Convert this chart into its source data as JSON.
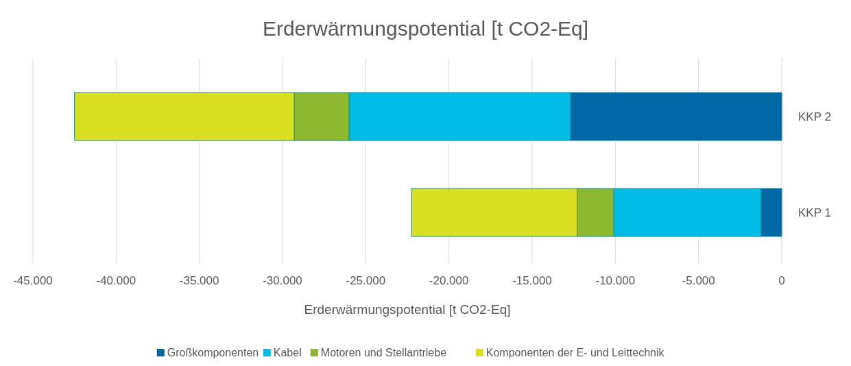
{
  "chart_data": {
    "type": "bar",
    "orientation": "horizontal",
    "stacked": true,
    "title": "Erderwärmungspotential [t CO2-Eq]",
    "xlabel": "Erderwärmungspotential [t CO2-Eq]",
    "categories": [
      "KKP 2",
      "KKP 1"
    ],
    "series": [
      {
        "name": "Großkomponenten",
        "color": "#0068a5",
        "values": [
          -12700,
          -1250
        ]
      },
      {
        "name": "Kabel",
        "color": "#00bce4",
        "values": [
          -13300,
          -8850
        ]
      },
      {
        "name": "Motoren und Stellantriebe",
        "color": "#8db92e",
        "values": [
          -3300,
          -2200
        ]
      },
      {
        "name": "Komponenten der E- und Leittechnik",
        "color": "#d9e021",
        "values": [
          -13200,
          -9950
        ]
      }
    ],
    "xlim": [
      -45000,
      0
    ],
    "xticks": [
      {
        "value": -45000,
        "label": "-45.000"
      },
      {
        "value": -40000,
        "label": "-40.000"
      },
      {
        "value": -35000,
        "label": "-35.000"
      },
      {
        "value": -30000,
        "label": "-30.000"
      },
      {
        "value": -25000,
        "label": "-25.000"
      },
      {
        "value": -20000,
        "label": "-20.000"
      },
      {
        "value": -15000,
        "label": "-15.000"
      },
      {
        "value": -10000,
        "label": "-10.000"
      },
      {
        "value": -5000,
        "label": "-5.000"
      },
      {
        "value": 0,
        "label": "0"
      }
    ],
    "grid": "x",
    "legend": "bottom"
  }
}
